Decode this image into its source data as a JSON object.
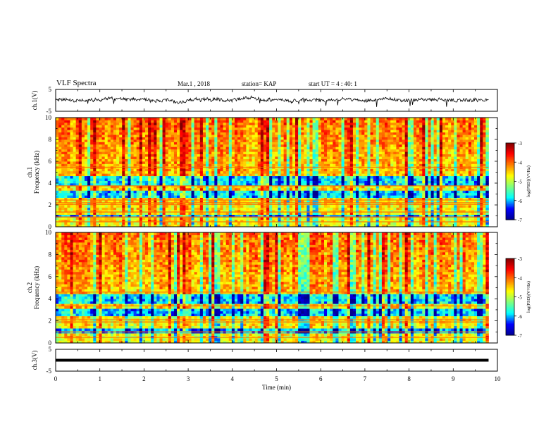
{
  "header": {
    "title": "VLF Spectra",
    "date": "Mar.1 , 2018",
    "station": "station= KAP",
    "start": "start UT =  4 : 40: 1"
  },
  "chart_data": [
    {
      "type": "line",
      "name": "ch1-waveform",
      "ylabel": "ch.1(V)",
      "yticks": [
        "5",
        "-5"
      ],
      "ylim": [
        -5,
        5
      ],
      "x_range_min": [
        0,
        9.8
      ],
      "y_mean": 0.2,
      "y_amplitude": 1.4,
      "line_color": "#000000"
    },
    {
      "type": "heatmap",
      "name": "ch1-spectrogram",
      "ylabel_top": "ch.1",
      "ylabel": "Frequency (kHz)",
      "yticks": [
        "0",
        "2",
        "4",
        "6",
        "8",
        "10"
      ],
      "ylim": [
        0,
        10
      ],
      "x_range_min": [
        0,
        9.8
      ],
      "quiet_bands_khz": [
        [
          2.7,
          3.3
        ],
        [
          3.8,
          4.7
        ],
        [
          0.9,
          1.2
        ]
      ],
      "strong_lines_khz": [
        0.45,
        0.9,
        1.35,
        2.05,
        2.2,
        2.45,
        3.75,
        5.45
      ]
    },
    {
      "type": "heatmap",
      "name": "ch2-spectrogram",
      "ylabel_top": "ch.2",
      "ylabel": "Frequency (kHz)",
      "yticks": [
        "0",
        "2",
        "4",
        "6",
        "8",
        "10"
      ],
      "ylim": [
        0,
        10
      ],
      "x_range_min": [
        0,
        9.8
      ],
      "quiet_bands_khz": [
        [
          2.5,
          3.2
        ],
        [
          3.6,
          4.5
        ],
        [
          0.8,
          1.3
        ]
      ],
      "strong_lines_khz": [
        0.5,
        1.0,
        1.9,
        2.1,
        3.35,
        4.6
      ]
    },
    {
      "type": "line",
      "name": "ch3-waveform",
      "ylabel": "ch.3(V)",
      "yticks": [
        "5",
        "-5"
      ],
      "ylim": [
        -5,
        5
      ],
      "x_range_min": [
        0,
        9.8
      ],
      "y_value": 0,
      "line_color": "#000000"
    }
  ],
  "time_axis": {
    "xlabel": "Time (min)",
    "ticks": [
      "0",
      "1",
      "2",
      "3",
      "4",
      "5",
      "6",
      "7",
      "8",
      "9",
      "10"
    ],
    "xlim": [
      0,
      10
    ]
  },
  "colorbar": {
    "label": "log(PSD)(V²/Hz)",
    "ticks": [
      "-3",
      "-4",
      "-5",
      "-6",
      "-7"
    ],
    "range": [
      -7,
      -3
    ],
    "colormap": [
      "#00008f",
      "#0000ff",
      "#00ffff",
      "#7fff7f",
      "#ffff00",
      "#ff7f00",
      "#ff0000",
      "#7f0000"
    ]
  }
}
